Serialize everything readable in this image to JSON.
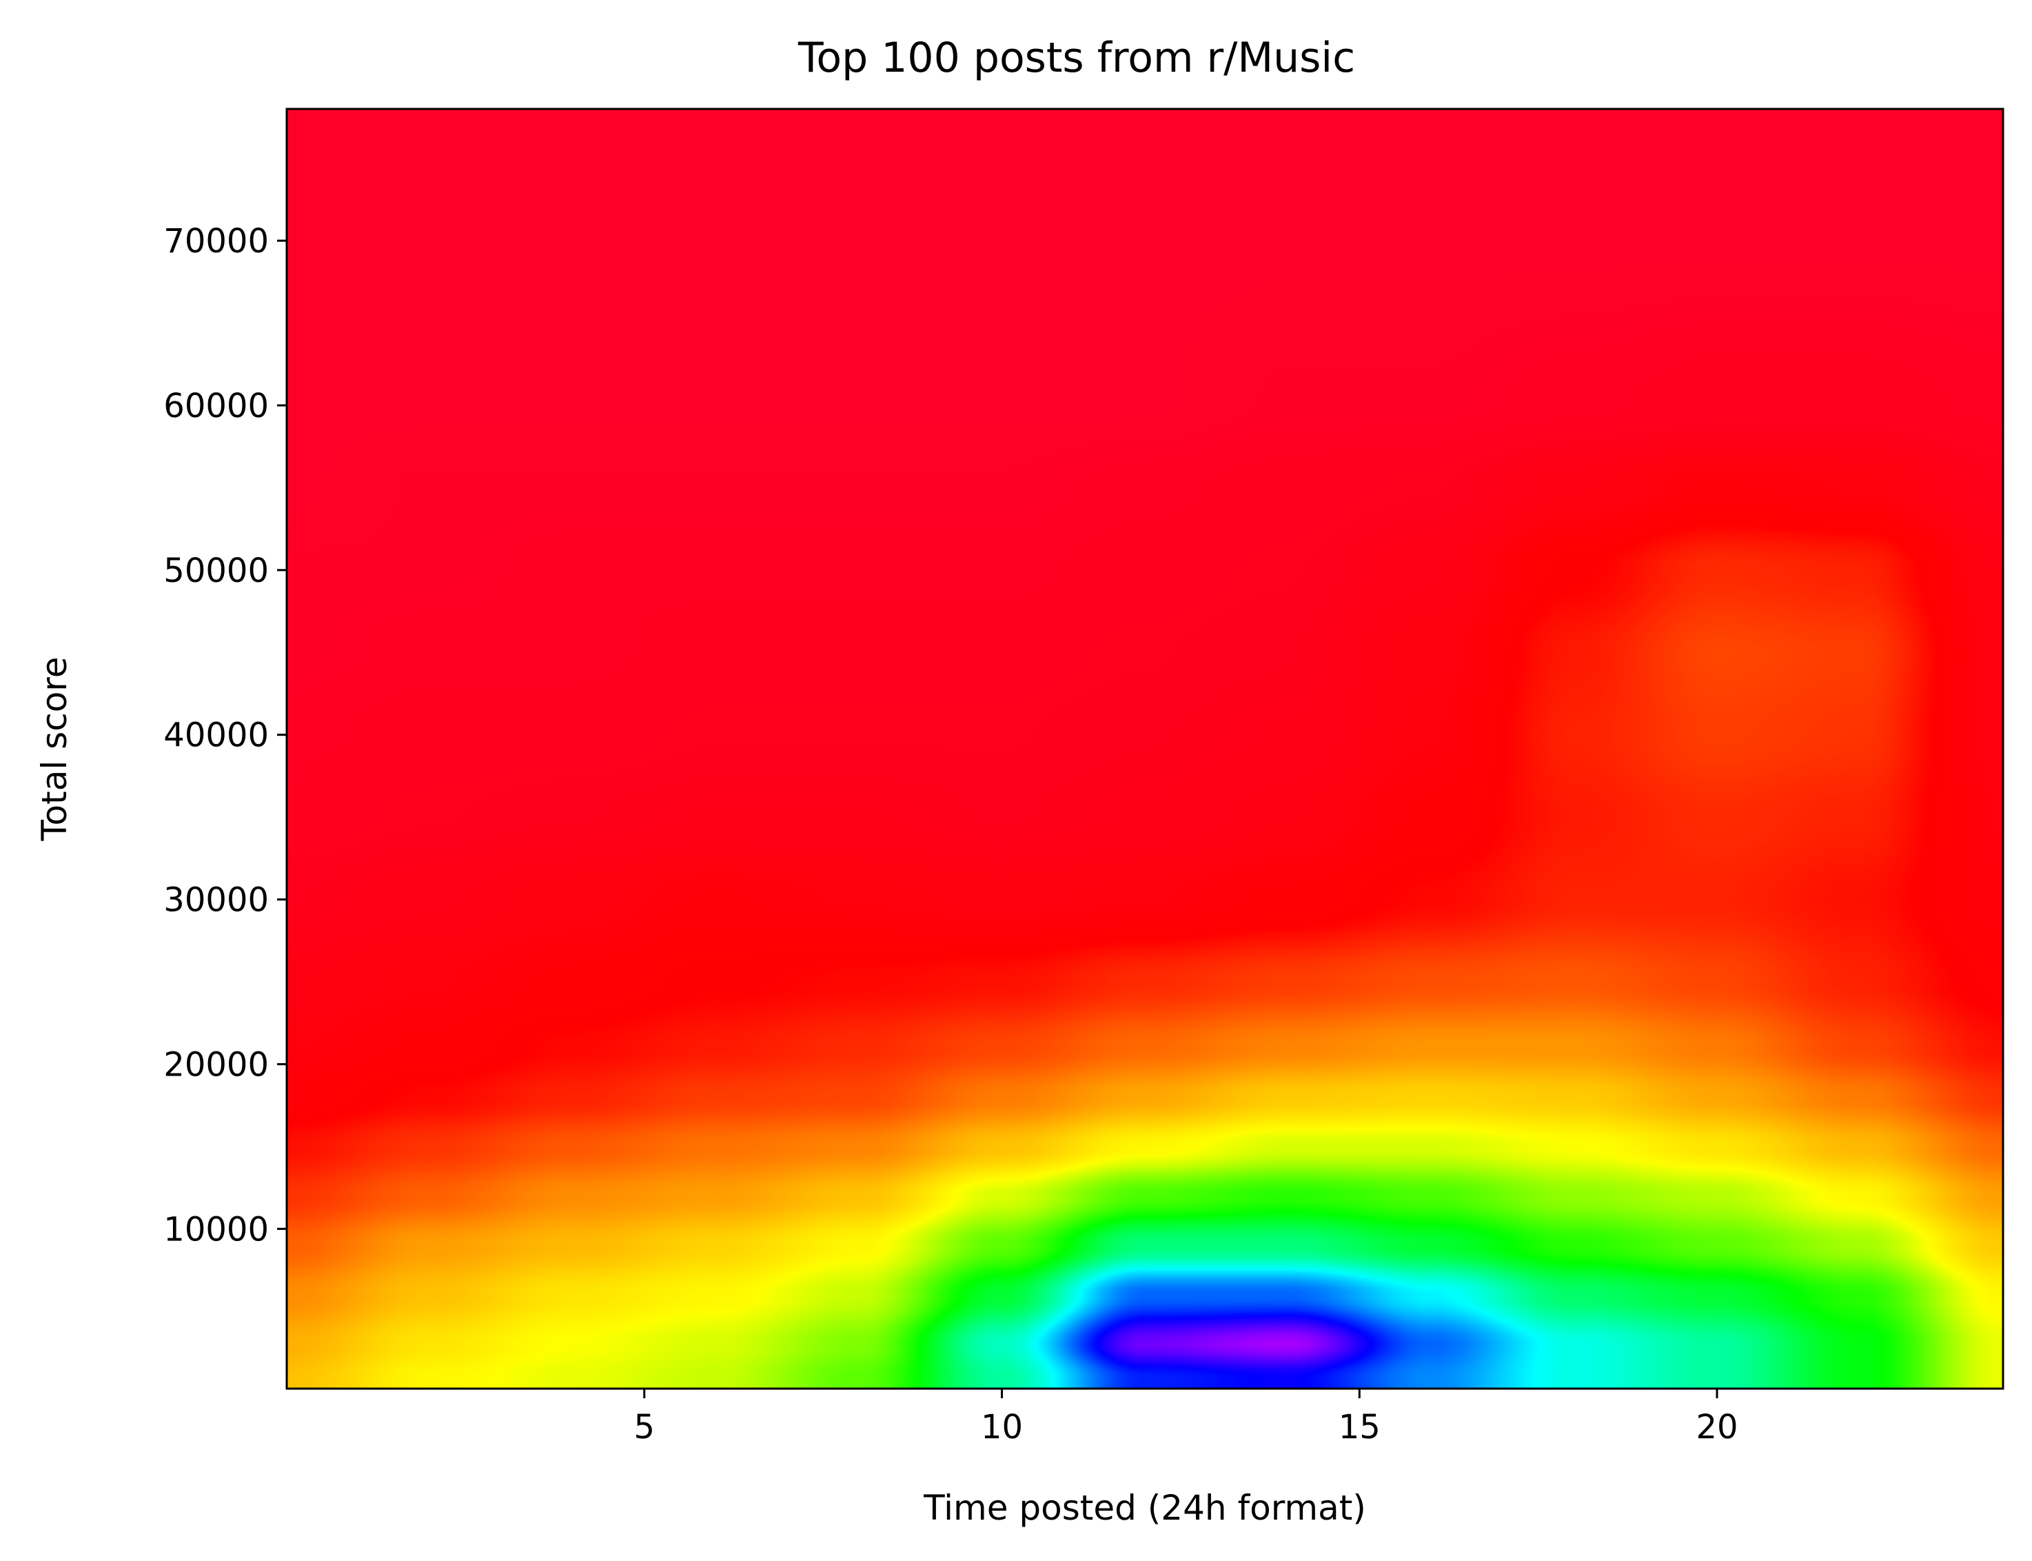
{
  "chart_data": {
    "type": "heatmap",
    "title": "Top 100 posts from r/Music",
    "xlabel": "Time posted (24h format)",
    "ylabel": "Total score",
    "xlim": [
      0,
      24
    ],
    "ylim": [
      300,
      78000
    ],
    "x_ticks": [
      5,
      10,
      15,
      20
    ],
    "y_ticks": [
      10000,
      20000,
      30000,
      40000,
      50000,
      60000,
      70000
    ],
    "grid": false,
    "legend": "none",
    "colormap": "gist_rainbow",
    "colormap_stops": [
      "#ff0028",
      "#ff0000",
      "#ff8000",
      "#ffff00",
      "#00ff00",
      "#00ffff",
      "#0000ff",
      "#ff00ff"
    ],
    "density_description": "2D kernel density of post time vs total score; density increases from red (low) through yellow, green, cyan, blue to magenta (high)",
    "density_peaks": [
      {
        "x": 13.5,
        "y": 2500,
        "level": "highest",
        "color": "magenta"
      },
      {
        "x": 19.5,
        "y": 46000,
        "level": "secondary",
        "color": "orange"
      }
    ],
    "density_grid": {
      "x": [
        0,
        2,
        4,
        6,
        8,
        10,
        12,
        14,
        16,
        18,
        20,
        22,
        24
      ],
      "y": [
        1000,
        3000,
        6000,
        9000,
        12000,
        15000,
        18000,
        21000,
        25000,
        30000,
        35000,
        40000,
        45000,
        50000,
        55000,
        60000,
        70000,
        78000
      ],
      "values": [
        [
          0.36,
          0.42,
          0.44,
          0.46,
          0.52,
          0.66,
          0.84,
          0.86,
          0.78,
          0.7,
          0.66,
          0.58,
          0.44
        ],
        [
          0.34,
          0.4,
          0.43,
          0.45,
          0.5,
          0.68,
          0.92,
          0.95,
          0.8,
          0.7,
          0.66,
          0.58,
          0.44
        ],
        [
          0.3,
          0.36,
          0.4,
          0.42,
          0.46,
          0.6,
          0.8,
          0.8,
          0.72,
          0.63,
          0.6,
          0.55,
          0.42
        ],
        [
          0.25,
          0.32,
          0.35,
          0.38,
          0.42,
          0.52,
          0.64,
          0.64,
          0.6,
          0.55,
          0.52,
          0.48,
          0.37
        ],
        [
          0.2,
          0.25,
          0.3,
          0.32,
          0.36,
          0.45,
          0.53,
          0.55,
          0.53,
          0.49,
          0.47,
          0.42,
          0.32
        ],
        [
          0.16,
          0.2,
          0.24,
          0.27,
          0.29,
          0.36,
          0.42,
          0.45,
          0.45,
          0.43,
          0.4,
          0.35,
          0.26
        ],
        [
          0.12,
          0.15,
          0.18,
          0.21,
          0.22,
          0.28,
          0.33,
          0.37,
          0.38,
          0.37,
          0.33,
          0.28,
          0.2
        ],
        [
          0.1,
          0.12,
          0.15,
          0.17,
          0.19,
          0.22,
          0.26,
          0.29,
          0.31,
          0.31,
          0.28,
          0.22,
          0.16
        ],
        [
          0.08,
          0.1,
          0.12,
          0.14,
          0.15,
          0.16,
          0.19,
          0.21,
          0.23,
          0.24,
          0.22,
          0.18,
          0.13
        ],
        [
          0.05,
          0.07,
          0.09,
          0.11,
          0.1,
          0.09,
          0.1,
          0.12,
          0.15,
          0.18,
          0.18,
          0.16,
          0.11
        ],
        [
          0.03,
          0.04,
          0.05,
          0.06,
          0.06,
          0.05,
          0.06,
          0.08,
          0.12,
          0.17,
          0.19,
          0.18,
          0.1
        ],
        [
          0.02,
          0.03,
          0.03,
          0.04,
          0.04,
          0.04,
          0.05,
          0.06,
          0.1,
          0.18,
          0.21,
          0.2,
          0.09
        ],
        [
          0.01,
          0.02,
          0.02,
          0.03,
          0.03,
          0.03,
          0.04,
          0.05,
          0.09,
          0.17,
          0.22,
          0.21,
          0.09
        ],
        [
          0.01,
          0.01,
          0.02,
          0.02,
          0.02,
          0.02,
          0.03,
          0.04,
          0.07,
          0.14,
          0.19,
          0.18,
          0.08
        ],
        [
          0.0,
          0.01,
          0.01,
          0.01,
          0.01,
          0.01,
          0.02,
          0.03,
          0.04,
          0.08,
          0.11,
          0.1,
          0.05
        ],
        [
          0.0,
          0.0,
          0.0,
          0.0,
          0.0,
          0.0,
          0.0,
          0.01,
          0.01,
          0.02,
          0.03,
          0.03,
          0.02
        ],
        [
          0.0,
          0.0,
          0.0,
          0.0,
          0.0,
          0.0,
          0.0,
          0.0,
          0.0,
          0.0,
          0.0,
          0.0,
          0.0
        ],
        [
          0.0,
          0.0,
          0.0,
          0.0,
          0.0,
          0.0,
          0.0,
          0.0,
          0.0,
          0.0,
          0.0,
          0.0,
          0.0
        ]
      ]
    }
  }
}
